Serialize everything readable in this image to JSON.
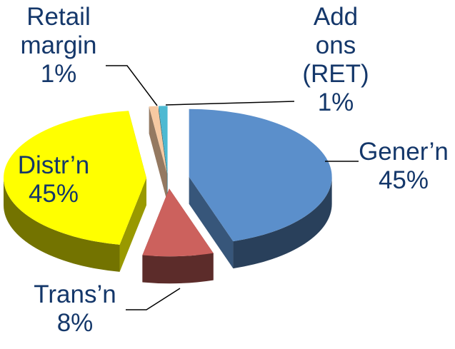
{
  "chart_data": {
    "type": "pie",
    "categories": [
      "Gener’n",
      "Trans’n",
      "Distr’n",
      "Retail margin",
      "Add ons (RET)"
    ],
    "values": [
      45,
      8,
      45,
      1,
      1
    ],
    "value_labels": [
      "45%",
      "8%",
      "45%",
      "1%",
      "1%"
    ],
    "colors": [
      "#5b8fcb",
      "#cc615d",
      "#ffff00",
      "#f6c9a2",
      "#4db9d2"
    ]
  }
}
